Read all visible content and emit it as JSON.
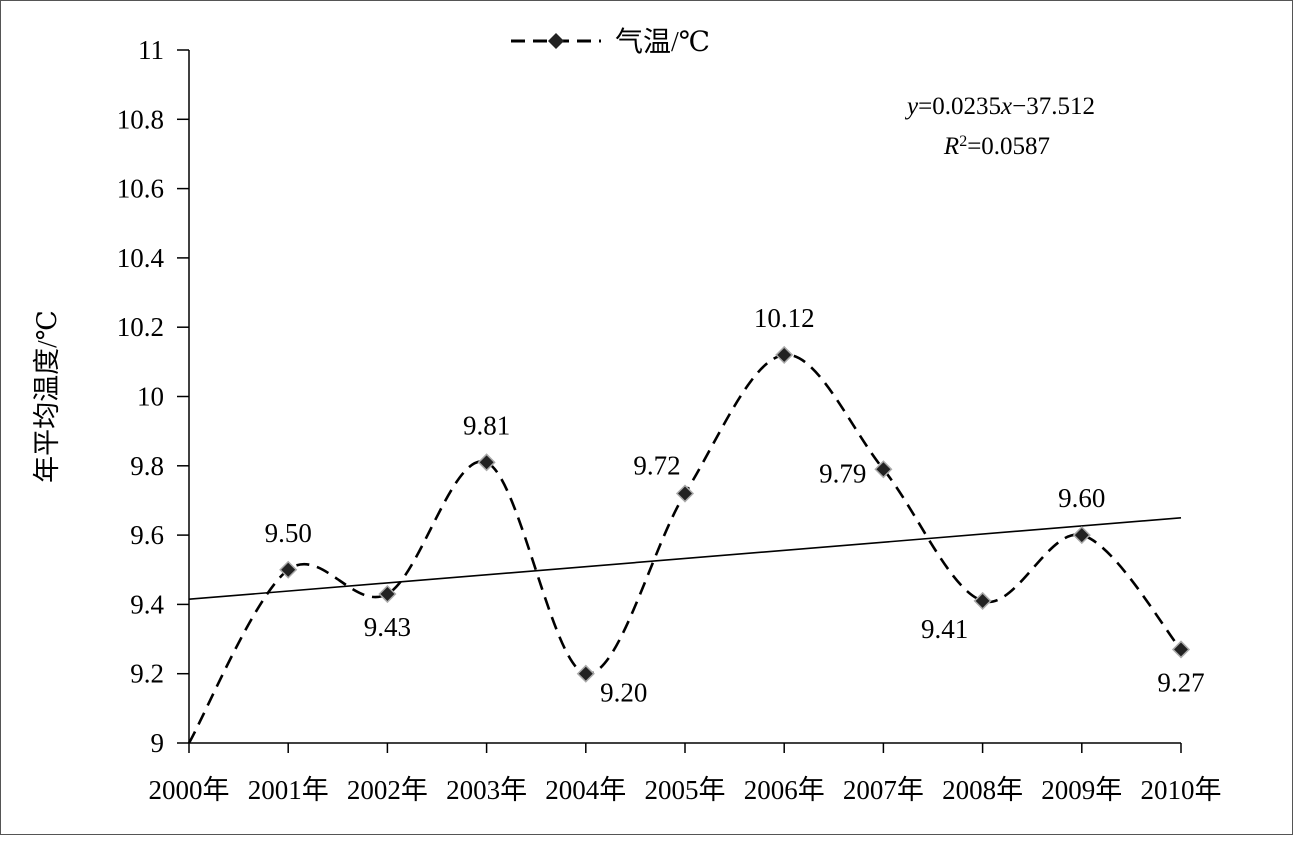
{
  "chart_data": {
    "type": "line",
    "title": "",
    "ylabel": "年平均温度/℃",
    "xlabel": "",
    "categories": [
      "2000年",
      "2001年",
      "2002年",
      "2003年",
      "2004年",
      "2005年",
      "2006年",
      "2007年",
      "2008年",
      "2009年",
      "2010年"
    ],
    "series": [
      {
        "name": "气温/℃",
        "values": [
          9.0,
          9.5,
          9.43,
          9.81,
          9.2,
          9.72,
          10.12,
          9.79,
          9.41,
          9.6,
          9.27
        ],
        "style": "dashed smoothed line with diamond markers",
        "color": "#000000"
      }
    ],
    "data_labels": [
      {
        "index": 1,
        "text": "9.50",
        "position": "above"
      },
      {
        "index": 2,
        "text": "9.43",
        "position": "below"
      },
      {
        "index": 3,
        "text": "9.81",
        "position": "above"
      },
      {
        "index": 4,
        "text": "9.20",
        "position": "below-right"
      },
      {
        "index": 5,
        "text": "9.72",
        "position": "above-left"
      },
      {
        "index": 6,
        "text": "10.12",
        "position": "above"
      },
      {
        "index": 7,
        "text": "9.79",
        "position": "left"
      },
      {
        "index": 8,
        "text": "9.41",
        "position": "below-left"
      },
      {
        "index": 9,
        "text": "9.60",
        "position": "above"
      },
      {
        "index": 10,
        "text": "9.27",
        "position": "below"
      }
    ],
    "trendline": {
      "type": "linear",
      "start_value": 9.415,
      "end_value": 9.65,
      "color": "#000000"
    },
    "equation": {
      "y_var": "y",
      "x_var": "x",
      "slope_text": "=0.0235",
      "intercept_text": "−37.512",
      "r_var": "R",
      "r_exp": "2",
      "r_value_text": "=0.0587"
    },
    "ylim": [
      9,
      11
    ],
    "yticks": [
      "9",
      "9.2",
      "9.4",
      "9.6",
      "9.8",
      "10",
      "10.2",
      "10.4",
      "10.6",
      "10.8",
      "11"
    ],
    "grid": false,
    "legend": {
      "position": "top-center",
      "entries": [
        "气温/℃"
      ]
    }
  }
}
